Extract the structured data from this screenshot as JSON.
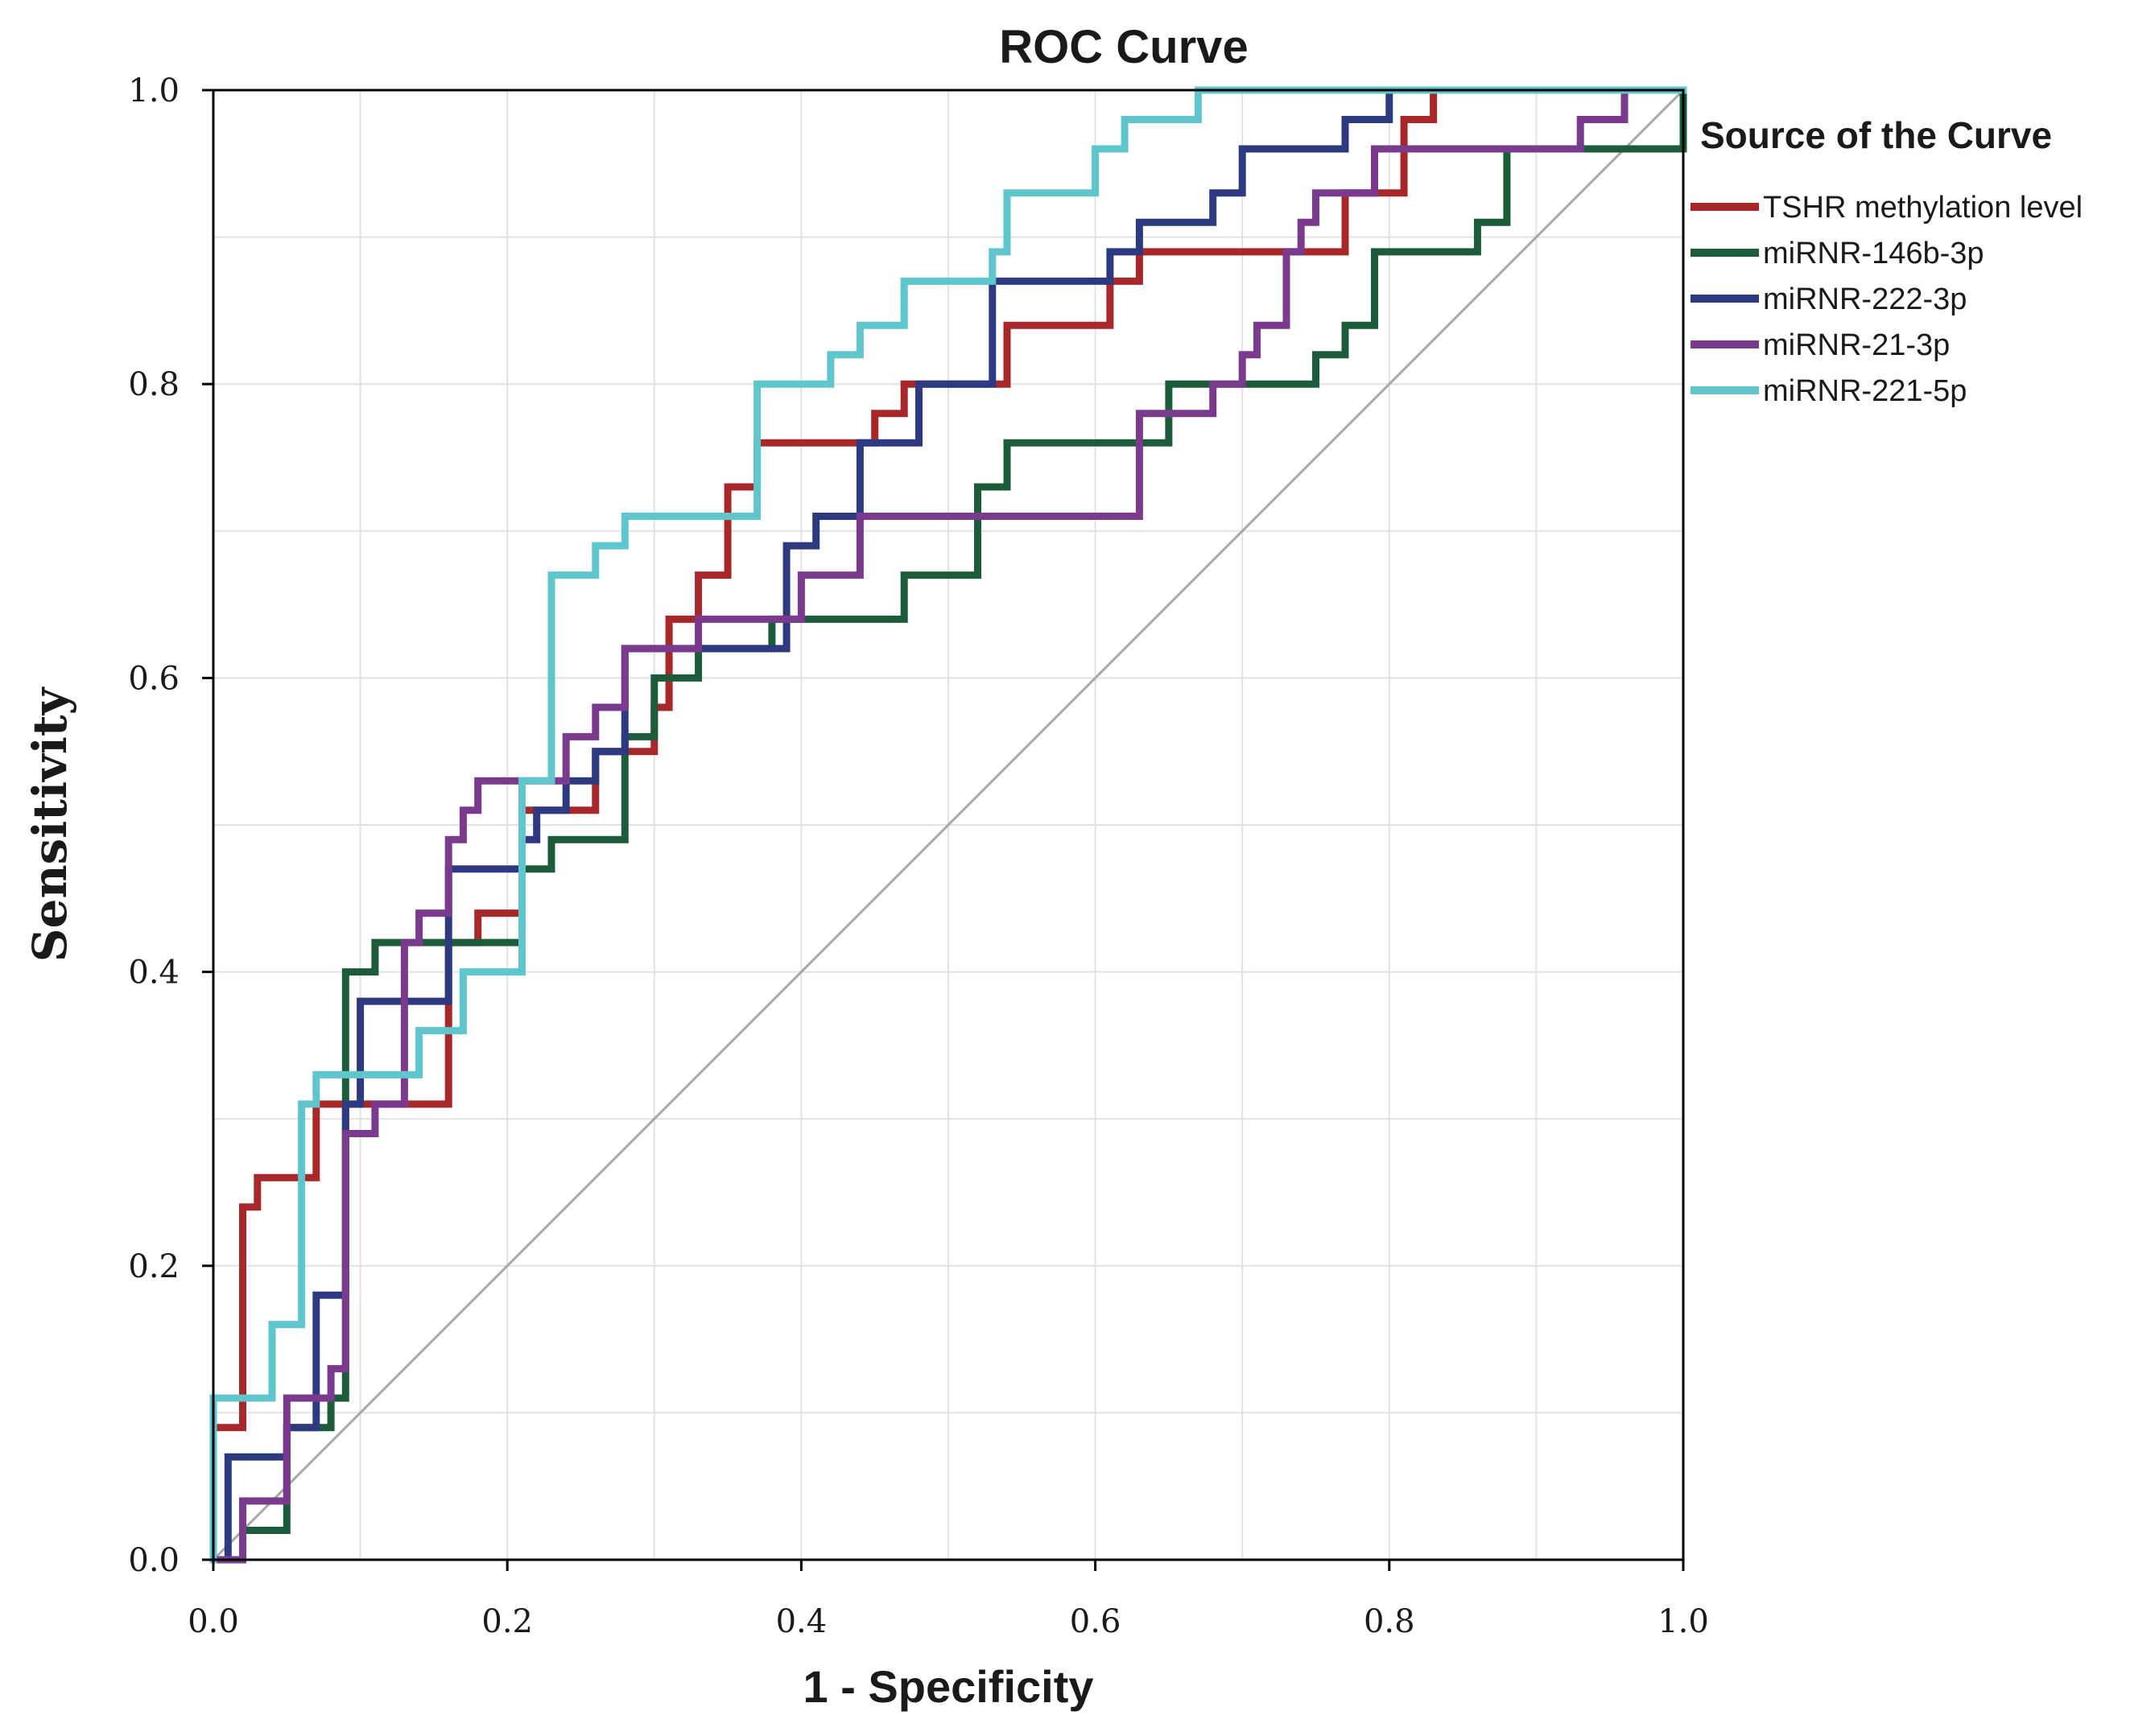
{
  "chart_data": {
    "type": "line",
    "title": "ROC Curve",
    "xlabel": "1 - Specificity",
    "ylabel": "Sensitivity",
    "xlim": [
      0,
      1
    ],
    "ylim": [
      0,
      1
    ],
    "x_ticks": [
      "0.0",
      "0.2",
      "0.4",
      "0.6",
      "0.8",
      "1.0"
    ],
    "y_ticks": [
      "0.0",
      "0.2",
      "0.4",
      "0.6",
      "0.8",
      "1.0"
    ],
    "grid": true,
    "legend_title": "Source of the Curve",
    "legend_position": "right",
    "reference_line": {
      "name": "Reference Line",
      "color": "#a8a8a8",
      "points": [
        [
          0,
          0
        ],
        [
          1,
          1
        ]
      ]
    },
    "series": [
      {
        "name": "TSHR methylation level",
        "color": "#a8282a",
        "points": [
          [
            0,
            0
          ],
          [
            0,
            0.09
          ],
          [
            0.02,
            0.09
          ],
          [
            0.02,
            0.24
          ],
          [
            0.03,
            0.24
          ],
          [
            0.03,
            0.26
          ],
          [
            0.07,
            0.26
          ],
          [
            0.07,
            0.31
          ],
          [
            0.16,
            0.31
          ],
          [
            0.16,
            0.42
          ],
          [
            0.18,
            0.42
          ],
          [
            0.18,
            0.44
          ],
          [
            0.21,
            0.44
          ],
          [
            0.21,
            0.51
          ],
          [
            0.26,
            0.51
          ],
          [
            0.26,
            0.55
          ],
          [
            0.3,
            0.55
          ],
          [
            0.3,
            0.58
          ],
          [
            0.31,
            0.58
          ],
          [
            0.31,
            0.64
          ],
          [
            0.33,
            0.64
          ],
          [
            0.33,
            0.67
          ],
          [
            0.35,
            0.67
          ],
          [
            0.35,
            0.73
          ],
          [
            0.37,
            0.73
          ],
          [
            0.37,
            0.76
          ],
          [
            0.45,
            0.76
          ],
          [
            0.45,
            0.78
          ],
          [
            0.47,
            0.78
          ],
          [
            0.47,
            0.8
          ],
          [
            0.54,
            0.8
          ],
          [
            0.54,
            0.84
          ],
          [
            0.61,
            0.84
          ],
          [
            0.61,
            0.87
          ],
          [
            0.63,
            0.87
          ],
          [
            0.63,
            0.89
          ],
          [
            0.77,
            0.89
          ],
          [
            0.77,
            0.93
          ],
          [
            0.81,
            0.93
          ],
          [
            0.81,
            0.98
          ],
          [
            0.83,
            0.98
          ],
          [
            0.83,
            1.0
          ],
          [
            1.0,
            1.0
          ]
        ]
      },
      {
        "name": "miRNR-146b-3p",
        "color": "#1d5c3a",
        "points": [
          [
            0,
            0
          ],
          [
            0.02,
            0
          ],
          [
            0.02,
            0.02
          ],
          [
            0.05,
            0.02
          ],
          [
            0.05,
            0.09
          ],
          [
            0.08,
            0.09
          ],
          [
            0.08,
            0.11
          ],
          [
            0.09,
            0.11
          ],
          [
            0.09,
            0.4
          ],
          [
            0.11,
            0.4
          ],
          [
            0.11,
            0.42
          ],
          [
            0.21,
            0.42
          ],
          [
            0.21,
            0.47
          ],
          [
            0.23,
            0.47
          ],
          [
            0.23,
            0.49
          ],
          [
            0.28,
            0.49
          ],
          [
            0.28,
            0.56
          ],
          [
            0.3,
            0.56
          ],
          [
            0.3,
            0.6
          ],
          [
            0.33,
            0.6
          ],
          [
            0.33,
            0.62
          ],
          [
            0.38,
            0.62
          ],
          [
            0.38,
            0.64
          ],
          [
            0.47,
            0.64
          ],
          [
            0.47,
            0.67
          ],
          [
            0.52,
            0.67
          ],
          [
            0.52,
            0.73
          ],
          [
            0.54,
            0.73
          ],
          [
            0.54,
            0.76
          ],
          [
            0.65,
            0.76
          ],
          [
            0.65,
            0.8
          ],
          [
            0.75,
            0.8
          ],
          [
            0.75,
            0.82
          ],
          [
            0.77,
            0.82
          ],
          [
            0.77,
            0.84
          ],
          [
            0.79,
            0.84
          ],
          [
            0.79,
            0.89
          ],
          [
            0.86,
            0.89
          ],
          [
            0.86,
            0.91
          ],
          [
            0.88,
            0.91
          ],
          [
            0.88,
            0.96
          ],
          [
            1.0,
            0.96
          ],
          [
            1.0,
            1.0
          ]
        ]
      },
      {
        "name": "miRNR-222-3p",
        "color": "#2d3a82",
        "points": [
          [
            0,
            0
          ],
          [
            0.01,
            0
          ],
          [
            0.01,
            0.07
          ],
          [
            0.05,
            0.07
          ],
          [
            0.05,
            0.09
          ],
          [
            0.07,
            0.09
          ],
          [
            0.07,
            0.18
          ],
          [
            0.09,
            0.18
          ],
          [
            0.09,
            0.31
          ],
          [
            0.1,
            0.31
          ],
          [
            0.1,
            0.38
          ],
          [
            0.16,
            0.38
          ],
          [
            0.16,
            0.47
          ],
          [
            0.21,
            0.47
          ],
          [
            0.21,
            0.49
          ],
          [
            0.22,
            0.49
          ],
          [
            0.22,
            0.51
          ],
          [
            0.24,
            0.51
          ],
          [
            0.24,
            0.53
          ],
          [
            0.26,
            0.53
          ],
          [
            0.26,
            0.55
          ],
          [
            0.28,
            0.55
          ],
          [
            0.28,
            0.62
          ],
          [
            0.39,
            0.62
          ],
          [
            0.39,
            0.69
          ],
          [
            0.41,
            0.69
          ],
          [
            0.41,
            0.71
          ],
          [
            0.44,
            0.71
          ],
          [
            0.44,
            0.76
          ],
          [
            0.48,
            0.76
          ],
          [
            0.48,
            0.8
          ],
          [
            0.53,
            0.8
          ],
          [
            0.53,
            0.87
          ],
          [
            0.61,
            0.87
          ],
          [
            0.61,
            0.89
          ],
          [
            0.63,
            0.89
          ],
          [
            0.63,
            0.91
          ],
          [
            0.68,
            0.91
          ],
          [
            0.68,
            0.93
          ],
          [
            0.7,
            0.93
          ],
          [
            0.7,
            0.96
          ],
          [
            0.77,
            0.96
          ],
          [
            0.77,
            0.98
          ],
          [
            0.8,
            0.98
          ],
          [
            0.8,
            1.0
          ],
          [
            1.0,
            1.0
          ]
        ]
      },
      {
        "name": "miRNR-21-3p",
        "color": "#7a3a8e",
        "points": [
          [
            0,
            0
          ],
          [
            0.02,
            0
          ],
          [
            0.02,
            0.04
          ],
          [
            0.05,
            0.04
          ],
          [
            0.05,
            0.11
          ],
          [
            0.08,
            0.11
          ],
          [
            0.08,
            0.13
          ],
          [
            0.09,
            0.13
          ],
          [
            0.09,
            0.29
          ],
          [
            0.11,
            0.29
          ],
          [
            0.11,
            0.31
          ],
          [
            0.13,
            0.31
          ],
          [
            0.13,
            0.42
          ],
          [
            0.14,
            0.42
          ],
          [
            0.14,
            0.44
          ],
          [
            0.16,
            0.44
          ],
          [
            0.16,
            0.49
          ],
          [
            0.17,
            0.49
          ],
          [
            0.17,
            0.51
          ],
          [
            0.18,
            0.51
          ],
          [
            0.18,
            0.53
          ],
          [
            0.24,
            0.53
          ],
          [
            0.24,
            0.56
          ],
          [
            0.26,
            0.56
          ],
          [
            0.26,
            0.58
          ],
          [
            0.28,
            0.58
          ],
          [
            0.28,
            0.62
          ],
          [
            0.33,
            0.62
          ],
          [
            0.33,
            0.64
          ],
          [
            0.4,
            0.64
          ],
          [
            0.4,
            0.67
          ],
          [
            0.44,
            0.67
          ],
          [
            0.44,
            0.71
          ],
          [
            0.63,
            0.71
          ],
          [
            0.63,
            0.78
          ],
          [
            0.68,
            0.78
          ],
          [
            0.68,
            0.8
          ],
          [
            0.7,
            0.8
          ],
          [
            0.7,
            0.82
          ],
          [
            0.71,
            0.82
          ],
          [
            0.71,
            0.84
          ],
          [
            0.73,
            0.84
          ],
          [
            0.73,
            0.89
          ],
          [
            0.74,
            0.89
          ],
          [
            0.74,
            0.91
          ],
          [
            0.75,
            0.91
          ],
          [
            0.75,
            0.93
          ],
          [
            0.79,
            0.93
          ],
          [
            0.79,
            0.96
          ],
          [
            0.93,
            0.96
          ],
          [
            0.93,
            0.98
          ],
          [
            0.96,
            0.98
          ],
          [
            0.96,
            1.0
          ],
          [
            1.0,
            1.0
          ]
        ]
      },
      {
        "name": "miRNR-221-5p",
        "color": "#5ec6cc",
        "points": [
          [
            0,
            0
          ],
          [
            0,
            0.11
          ],
          [
            0.04,
            0.11
          ],
          [
            0.04,
            0.16
          ],
          [
            0.06,
            0.16
          ],
          [
            0.06,
            0.31
          ],
          [
            0.07,
            0.31
          ],
          [
            0.07,
            0.33
          ],
          [
            0.14,
            0.33
          ],
          [
            0.14,
            0.36
          ],
          [
            0.17,
            0.36
          ],
          [
            0.17,
            0.4
          ],
          [
            0.21,
            0.4
          ],
          [
            0.21,
            0.53
          ],
          [
            0.23,
            0.53
          ],
          [
            0.23,
            0.67
          ],
          [
            0.26,
            0.67
          ],
          [
            0.26,
            0.69
          ],
          [
            0.28,
            0.69
          ],
          [
            0.28,
            0.71
          ],
          [
            0.37,
            0.71
          ],
          [
            0.37,
            0.8
          ],
          [
            0.42,
            0.8
          ],
          [
            0.42,
            0.82
          ],
          [
            0.44,
            0.82
          ],
          [
            0.44,
            0.84
          ],
          [
            0.47,
            0.84
          ],
          [
            0.47,
            0.87
          ],
          [
            0.53,
            0.87
          ],
          [
            0.53,
            0.89
          ],
          [
            0.54,
            0.89
          ],
          [
            0.54,
            0.93
          ],
          [
            0.6,
            0.93
          ],
          [
            0.6,
            0.96
          ],
          [
            0.62,
            0.96
          ],
          [
            0.62,
            0.98
          ],
          [
            0.67,
            0.98
          ],
          [
            0.67,
            1.0
          ],
          [
            1.0,
            1.0
          ]
        ]
      }
    ]
  }
}
